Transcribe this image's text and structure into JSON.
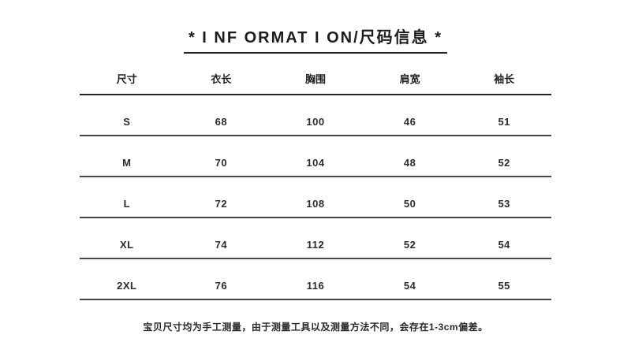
{
  "title": "* I NF ORMAT I ON/尺码信息 *",
  "table": {
    "headers": [
      "尺寸",
      "衣长",
      "胸围",
      "肩宽",
      "袖长"
    ],
    "rows": [
      [
        "S",
        "68",
        "100",
        "46",
        "51"
      ],
      [
        "M",
        "70",
        "104",
        "48",
        "52"
      ],
      [
        "L",
        "72",
        "108",
        "50",
        "53"
      ],
      [
        "XL",
        "74",
        "112",
        "52",
        "54"
      ],
      [
        "2XL",
        "76",
        "116",
        "54",
        "55"
      ]
    ]
  },
  "footnote": "宝贝尺寸均为手工测量，由于测量工具以及测量方法不同，会存在1-3cm偏差。",
  "colors": {
    "background": "#ffffff",
    "text": "#1f1f1f",
    "header_rule": "#242424",
    "row_rule": "#444444"
  },
  "chart_data": {
    "type": "table",
    "title": "* I NF ORMAT I ON/尺码信息 *",
    "columns": [
      "尺寸",
      "衣长",
      "胸围",
      "肩宽",
      "袖长"
    ],
    "rows": [
      [
        "S",
        "68",
        "100",
        "46",
        "51"
      ],
      [
        "M",
        "70",
        "104",
        "48",
        "52"
      ],
      [
        "L",
        "72",
        "108",
        "50",
        "53"
      ],
      [
        "XL",
        "74",
        "112",
        "52",
        "54"
      ],
      [
        "2XL",
        "76",
        "116",
        "54",
        "55"
      ]
    ],
    "note": "宝贝尺寸均为手工测量，由于测量工具以及测量方法不同，会存在1-3cm偏差。",
    "layout": {
      "grid": "horizontal-rules-only",
      "column_alignment": "center",
      "title_underlined": true
    }
  }
}
